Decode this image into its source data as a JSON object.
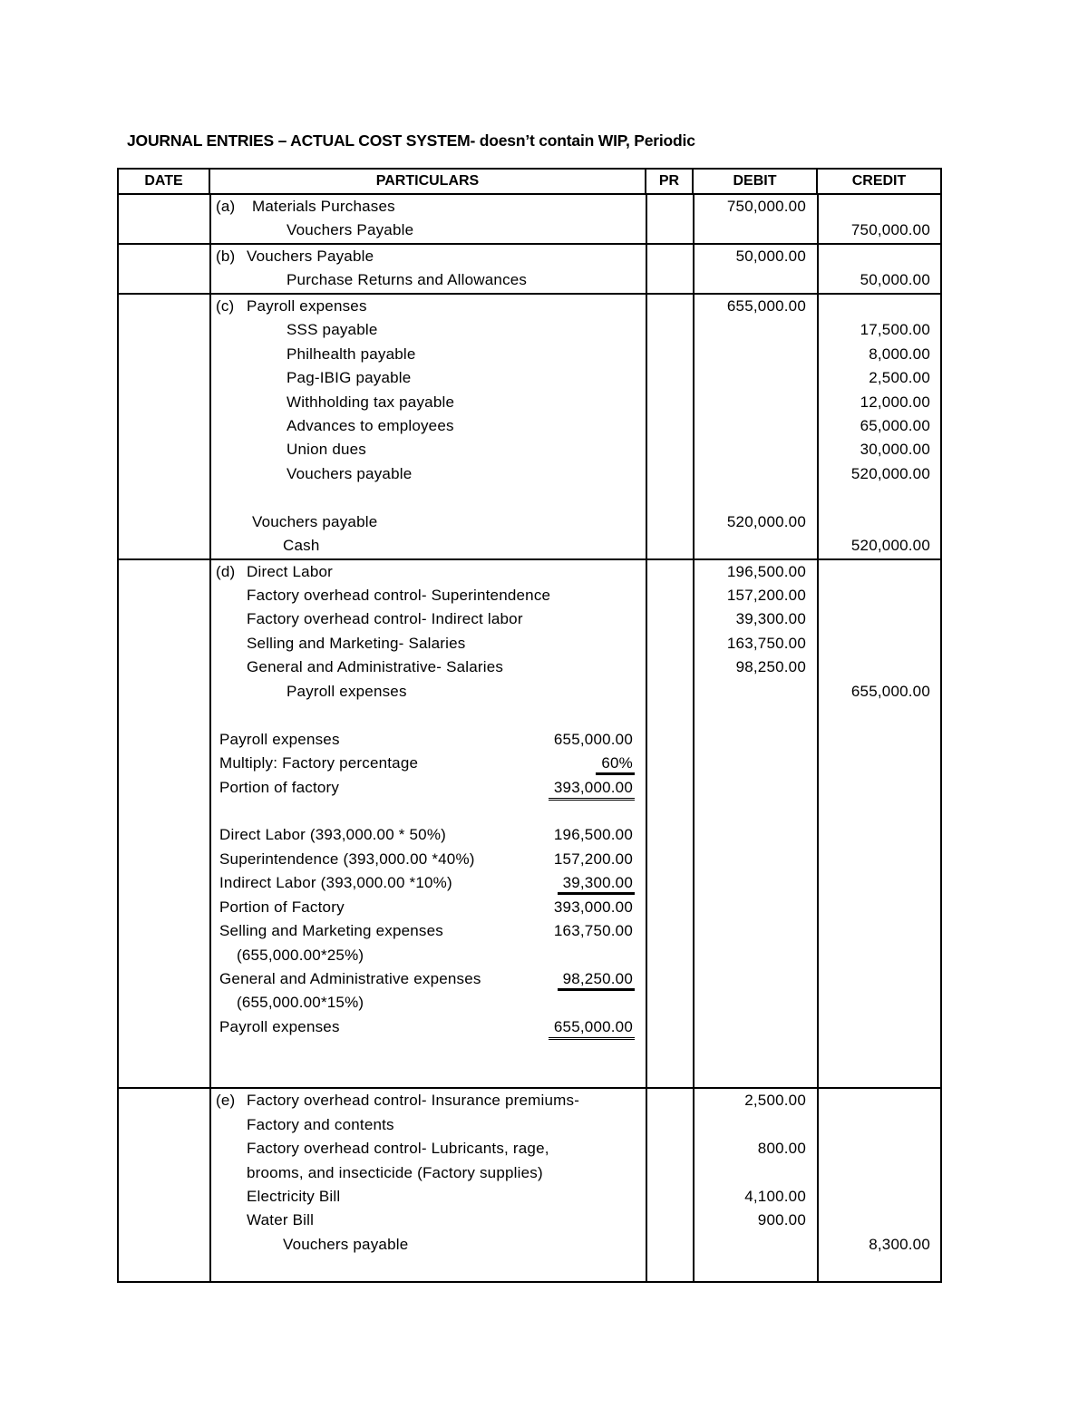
{
  "title": "JOURNAL ENTRIES – ACTUAL COST SYSTEM- doesn’t contain WIP, Periodic",
  "headers": {
    "date": "DATE",
    "particulars": "PARTICULARS",
    "pr": "PR",
    "debit": "DEBIT",
    "credit": "CREDIT"
  },
  "sections": [
    {
      "lines": [
        {
          "letter": "(a)",
          "role": "entry-wide",
          "text": "Materials Purchases",
          "debit": "750,000.00"
        },
        {
          "role": "credit-account",
          "text": "Vouchers Payable",
          "credit": "750,000.00"
        }
      ]
    },
    {
      "lines": [
        {
          "letter": "(b)",
          "role": "entry",
          "text": "Vouchers Payable",
          "debit": "50,000.00"
        },
        {
          "role": "credit-account",
          "text": "Purchase Returns and Allowances",
          "credit": "50,000.00"
        }
      ]
    },
    {
      "lines": [
        {
          "letter": "(c)",
          "role": "entry",
          "text": "Payroll expenses",
          "debit": "655,000.00"
        },
        {
          "role": "credit-account",
          "text": "SSS payable",
          "credit": "17,500.00"
        },
        {
          "role": "credit-account",
          "text": "Philhealth payable",
          "credit": "8,000.00"
        },
        {
          "role": "credit-account",
          "text": "Pag-IBIG payable",
          "credit": "2,500.00"
        },
        {
          "role": "credit-account",
          "text": "Withholding tax payable",
          "credit": "12,000.00"
        },
        {
          "role": "credit-account",
          "text": "Advances to employees",
          "credit": "65,000.00"
        },
        {
          "role": "credit-account",
          "text": "Union dues",
          "credit": "30,000.00"
        },
        {
          "role": "credit-account",
          "text": "Vouchers payable",
          "credit": "520,000.00"
        },
        {
          "role": "blank"
        },
        {
          "role": "debit-wide",
          "text": "Vouchers payable",
          "debit": "520,000.00"
        },
        {
          "role": "credit-cash",
          "text": "Cash",
          "credit": "520,000.00"
        }
      ]
    },
    {
      "lines": [
        {
          "letter": "(d)",
          "role": "entry",
          "text": "Direct Labor",
          "debit": "196,500.00"
        },
        {
          "role": "debit-account",
          "text": "Factory overhead control- Superintendence",
          "debit": "157,200.00"
        },
        {
          "role": "debit-account",
          "text": "Factory overhead control- Indirect labor",
          "debit": "39,300.00"
        },
        {
          "role": "debit-account",
          "text": "Selling and Marketing- Salaries",
          "debit": "163,750.00"
        },
        {
          "role": "debit-account",
          "text": "General and Administrative- Salaries",
          "debit": "98,250.00"
        },
        {
          "role": "credit-account",
          "text": "Payroll expenses",
          "credit": "655,000.00"
        },
        {
          "role": "blank"
        },
        {
          "role": "calc",
          "text": "Payroll expenses",
          "amount": "655,000.00"
        },
        {
          "role": "calc",
          "text": "Multiply: Factory percentage",
          "amount": "60%",
          "underline": "single"
        },
        {
          "role": "calc",
          "text": "Portion of factory",
          "amount": "393,000.00",
          "underline": "double"
        },
        {
          "role": "blank"
        },
        {
          "role": "calc",
          "text": "Direct Labor (393,000.00 * 50%)",
          "amount": "196,500.00"
        },
        {
          "role": "calc",
          "text": "Superintendence (393,000.00 *40%)",
          "amount": "157,200.00"
        },
        {
          "role": "calc",
          "text": "Indirect Labor (393,000.00 *10%)",
          "amount": "39,300.00",
          "underline": "single"
        },
        {
          "role": "calc",
          "text": "Portion of Factory",
          "amount": "393,000.00"
        },
        {
          "role": "calc",
          "text": "Selling and Marketing expenses",
          "amount": "163,750.00"
        },
        {
          "role": "calc-sub",
          "text": "(655,000.00*25%)"
        },
        {
          "role": "calc",
          "text": "General and Administrative expenses",
          "amount": "98,250.00",
          "underline": "single"
        },
        {
          "role": "calc-sub",
          "text": "(655,000.00*15%)"
        },
        {
          "role": "calc",
          "text": "Payroll expenses",
          "amount": "655,000.00",
          "underline": "double"
        },
        {
          "role": "blank"
        },
        {
          "role": "blank"
        }
      ]
    },
    {
      "lines": [
        {
          "letter": "(e)",
          "role": "entry",
          "text": "Factory overhead control- Insurance premiums-",
          "debit": "2,500.00"
        },
        {
          "role": "debit-account",
          "text": "Factory and contents"
        },
        {
          "role": "debit-account",
          "text": "Factory overhead control- Lubricants, rage,",
          "debit": "800.00"
        },
        {
          "role": "debit-account",
          "text": "brooms, and insecticide (Factory supplies)"
        },
        {
          "role": "debit-account",
          "text": "Electricity Bill",
          "debit": "4,100.00"
        },
        {
          "role": "debit-account",
          "text": "Water Bill",
          "debit": "900.00"
        },
        {
          "role": "credit-cash",
          "text": "Vouchers payable",
          "credit": "8,300.00"
        },
        {
          "role": "blank"
        }
      ]
    }
  ]
}
